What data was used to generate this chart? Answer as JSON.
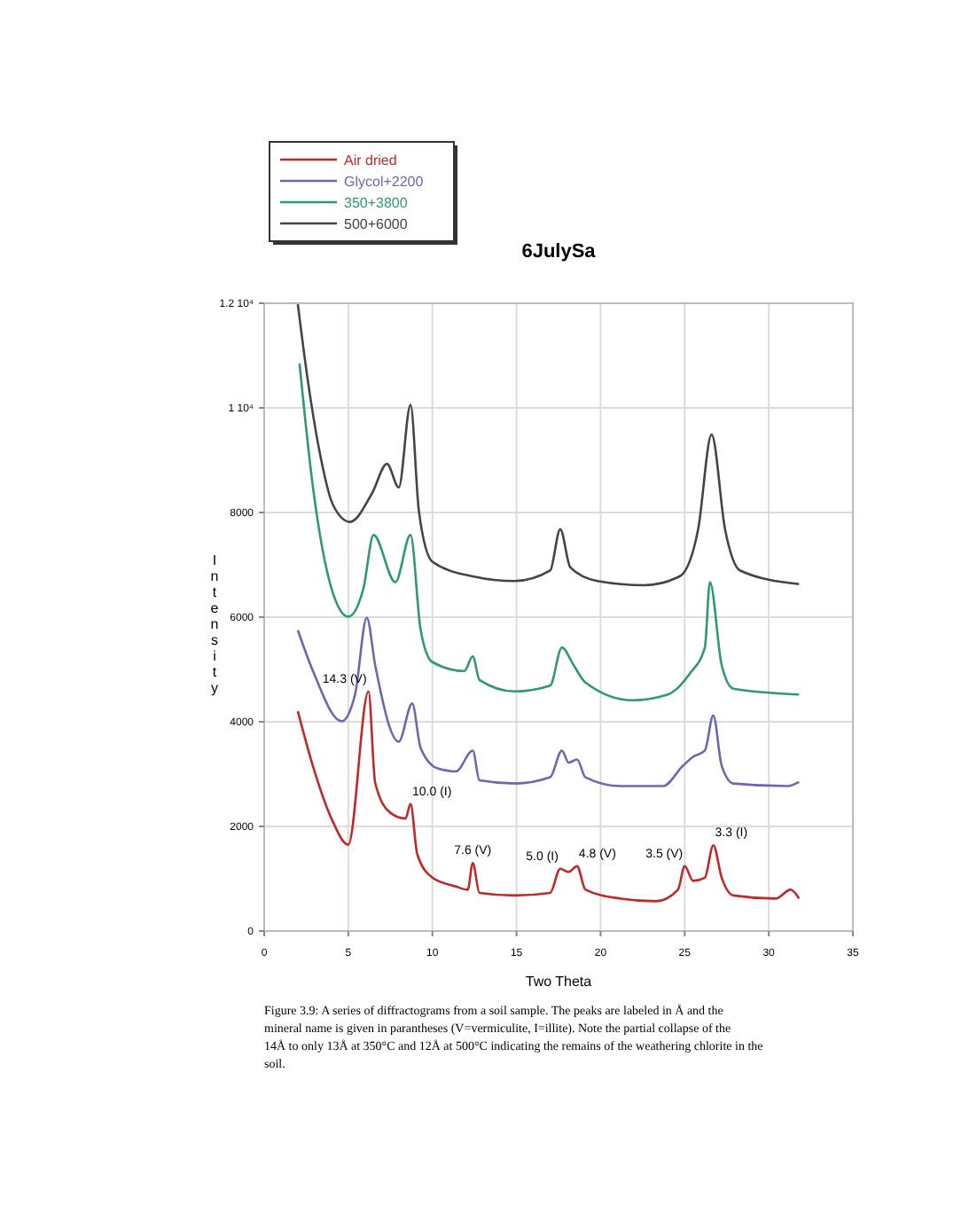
{
  "chart_data": {
    "type": "line",
    "title": "6JulySa",
    "xlabel": "Two Theta",
    "ylabel": "Intensity",
    "xlim": [
      0,
      35
    ],
    "xticks": [
      0,
      5,
      10,
      15,
      20,
      25,
      30,
      35
    ],
    "ylim": [
      0,
      12000
    ],
    "yticks": [
      0,
      2000,
      4000,
      6000,
      8000,
      {
        "value": 10000,
        "label": "1 10⁴"
      },
      {
        "value": 12000,
        "label": "1.2 10⁴"
      }
    ],
    "grid": true,
    "legend": "top left",
    "marker": "none",
    "line_style": "solid",
    "series": [
      {
        "name": "Air dried",
        "color": "#c0282a",
        "x": [
          2.0,
          2.9,
          4.0,
          5.0,
          6.2,
          6.6,
          7.5,
          8.4,
          8.7,
          9.1,
          10.0,
          11.4,
          12.1,
          12.4,
          12.8,
          14.9,
          17.0,
          17.6,
          18.1,
          18.6,
          19.1,
          21.2,
          23.3,
          24.6,
          25.0,
          25.5,
          26.2,
          26.7,
          27.2,
          27.9,
          30.4,
          31.3,
          31.8
        ],
        "values": [
          4200,
          3150,
          2150,
          1650,
          4580,
          2830,
          2260,
          2150,
          2430,
          1470,
          1020,
          850,
          790,
          1300,
          730,
          680,
          730,
          1190,
          1130,
          1240,
          790,
          620,
          570,
          790,
          1240,
          960,
          1020,
          1640,
          1020,
          680,
          620,
          790,
          620
        ]
      },
      {
        "name": "Glycol+2200",
        "color": "#6a6aaa",
        "x": [
          2.0,
          2.9,
          4.6,
          5.4,
          6.1,
          6.6,
          8.0,
          8.8,
          9.3,
          10.3,
          11.4,
          12.4,
          12.8,
          14.9,
          17.0,
          17.7,
          18.1,
          18.6,
          19.1,
          21.2,
          23.7,
          24.9,
          25.5,
          26.2,
          26.7,
          27.2,
          27.9,
          31.1,
          31.8
        ],
        "values": [
          5750,
          4970,
          4010,
          4520,
          5990,
          5080,
          3620,
          4350,
          3500,
          3110,
          3050,
          3450,
          2880,
          2820,
          2940,
          3450,
          3220,
          3280,
          2940,
          2770,
          2770,
          3160,
          3330,
          3450,
          4120,
          3160,
          2820,
          2770,
          2850
        ]
      },
      {
        "name": "350+3800",
        "color": "#2e9a6e",
        "x": [
          2.1,
          2.9,
          4.0,
          5.0,
          5.9,
          6.5,
          7.8,
          8.7,
          9.3,
          10.0,
          11.9,
          12.4,
          12.8,
          14.9,
          17.0,
          17.7,
          18.4,
          19.1,
          21.9,
          24.0,
          25.3,
          26.2,
          26.5,
          27.2,
          27.9,
          31.8
        ],
        "values": [
          10850,
          8480,
          6550,
          6010,
          6550,
          7570,
          6670,
          7570,
          5760,
          5140,
          4970,
          5250,
          4800,
          4580,
          4690,
          5420,
          5080,
          4750,
          4410,
          4520,
          4920,
          5420,
          6670,
          5080,
          4630,
          4520
        ]
      },
      {
        "name": "500+6000",
        "color": "#444444",
        "x": [
          2.0,
          2.6,
          3.3,
          4.1,
          5.1,
          6.4,
          7.3,
          8.0,
          8.7,
          9.2,
          10.0,
          12.4,
          14.9,
          17.0,
          17.6,
          18.2,
          19.8,
          22.6,
          24.7,
          25.8,
          26.6,
          27.4,
          28.3,
          31.8
        ],
        "values": [
          11980,
          10510,
          9150,
          8140,
          7820,
          8360,
          8930,
          8480,
          10060,
          8020,
          7060,
          6780,
          6690,
          6890,
          7680,
          6950,
          6690,
          6610,
          6780,
          7680,
          9490,
          7680,
          6890,
          6630
        ]
      }
    ],
    "annotations": [
      {
        "text": "14.3 (V)",
        "x": 6.2,
        "y": 4580
      },
      {
        "text": "10.0 (I)",
        "x": 8.7,
        "y": 2430
      },
      {
        "text": "7.6 (V)",
        "x": 12.4,
        "y": 1300
      },
      {
        "text": "5.0 (I)",
        "x": 17.6,
        "y": 1190
      },
      {
        "text": "4.8 (V)",
        "x": 18.6,
        "y": 1240
      },
      {
        "text": "3.5 (V)",
        "x": 25.0,
        "y": 1240
      },
      {
        "text": "3.3 (I)",
        "x": 26.7,
        "y": 1640
      },
      "Figure 3.9:  A series of diffractograms from a soil sample.  The peaks are labeled in Å and the mineral name is given in parantheses (V=vermiculite, I=illite).  Note the partial collapse of the 14Å to only 13Å at 350°C and 12Å at 500°C indicating the remains of the weathering chlorite in the soil."
    ]
  }
}
